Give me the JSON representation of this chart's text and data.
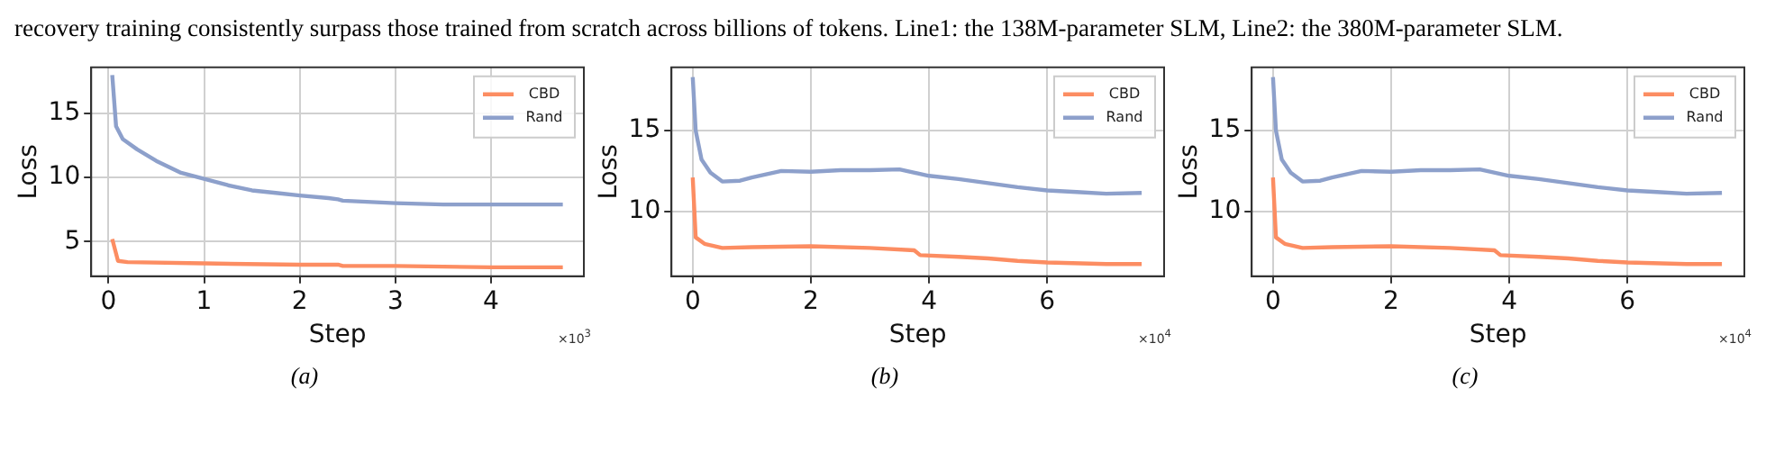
{
  "chart_data": [
    {
      "type": "line",
      "annotations": [
        "recovery training consistently surpass those trained from scratch across billions of tokens. Line1: the 138M-parameter SLM, Line2: the 380M-parameter SLM.",
        "×10$^{3}$",
        "(a)"
      ],
      "xlabel": "Step",
      "ylabel": "Loss",
      "xlim": [
        -0.18,
        4.97
      ],
      "xticks": [
        0,
        1,
        2,
        3,
        4
      ],
      "ylim": [
        2.3,
        18.6
      ],
      "yticks": [
        5,
        10,
        15
      ],
      "grid": true,
      "legend": "top right",
      "marker": "none",
      "line_style": "solid",
      "series": [
        {
          "name": "CBD",
          "color": "#fc8d62",
          "x": [
            0.04,
            0.1,
            0.2,
            1,
            2,
            2.4,
            2.45,
            3,
            4,
            4.75
          ],
          "values": [
            5.2,
            3.5,
            3.4,
            3.3,
            3.2,
            3.2,
            3.1,
            3.1,
            3.0,
            3.0
          ]
        },
        {
          "name": "Rand",
          "color": "#8da0cb",
          "x": [
            0.04,
            0.08,
            0.15,
            0.3,
            0.5,
            0.75,
            1,
            1.25,
            1.5,
            1.75,
            2,
            2.3,
            2.4,
            2.45,
            3,
            3.5,
            4,
            4.75
          ],
          "values": [
            18,
            14,
            13,
            12.2,
            11.3,
            10.4,
            9.9,
            9.4,
            9.0,
            8.8,
            8.6,
            8.4,
            8.3,
            8.2,
            8.0,
            7.9,
            7.9,
            7.9
          ]
        }
      ]
    },
    {
      "type": "line",
      "annotations": [
        "×10$^{4}$",
        "(b)"
      ],
      "xlabel": "Step",
      "ylabel": "Loss",
      "xlim": [
        -0.36,
        7.98
      ],
      "xticks": [
        0,
        2,
        4,
        6
      ],
      "ylim": [
        6,
        18.9
      ],
      "yticks": [
        10,
        15
      ],
      "grid": true,
      "legend": "top right",
      "marker": "none",
      "line_style": "solid",
      "series": [
        {
          "name": "CBD",
          "color": "#fc8d62",
          "x": [
            0,
            0.05,
            0.2,
            0.5,
            1,
            2,
            3,
            3.75,
            3.85,
            4.5,
            5,
            5.5,
            6,
            7,
            7.6
          ],
          "values": [
            12.1,
            8.4,
            8.0,
            7.75,
            7.8,
            7.85,
            7.75,
            7.6,
            7.3,
            7.2,
            7.1,
            6.95,
            6.85,
            6.75,
            6.75
          ]
        },
        {
          "name": "Rand",
          "color": "#8da0cb",
          "x": [
            0,
            0.05,
            0.15,
            0.3,
            0.5,
            0.8,
            1,
            1.5,
            2,
            2.5,
            3,
            3.5,
            4,
            4.5,
            5,
            5.5,
            6,
            6.5,
            7,
            7.6
          ],
          "values": [
            18.3,
            15,
            13.2,
            12.4,
            11.85,
            11.9,
            12.1,
            12.5,
            12.45,
            12.55,
            12.55,
            12.6,
            12.2,
            12.0,
            11.75,
            11.5,
            11.3,
            11.2,
            11.1,
            11.15
          ]
        }
      ]
    },
    {
      "type": "line",
      "annotations": [
        "×10$^{4}$",
        "(c)"
      ],
      "xlabel": "Step",
      "ylabel": "Loss",
      "xlim": [
        -0.36,
        7.98
      ],
      "xticks": [
        0,
        2,
        4,
        6
      ],
      "ylim": [
        6,
        18.9
      ],
      "yticks": [
        10,
        15
      ],
      "grid": true,
      "legend": "top right",
      "marker": "none",
      "line_style": "solid",
      "series": [
        {
          "name": "CBD",
          "color": "#fc8d62",
          "x": [
            0,
            0.05,
            0.2,
            0.5,
            1,
            2,
            3,
            3.75,
            3.85,
            4.5,
            5,
            5.5,
            6,
            7,
            7.6
          ],
          "values": [
            12.1,
            8.4,
            8.0,
            7.75,
            7.8,
            7.85,
            7.75,
            7.6,
            7.3,
            7.2,
            7.1,
            6.95,
            6.85,
            6.75,
            6.75
          ]
        },
        {
          "name": "Rand",
          "color": "#8da0cb",
          "x": [
            0,
            0.05,
            0.15,
            0.3,
            0.5,
            0.8,
            1,
            1.5,
            2,
            2.5,
            3,
            3.5,
            4,
            4.5,
            5,
            5.5,
            6,
            6.5,
            7,
            7.6
          ],
          "values": [
            18.3,
            15,
            13.2,
            12.4,
            11.85,
            11.9,
            12.1,
            12.5,
            12.45,
            12.55,
            12.55,
            12.6,
            12.2,
            12.0,
            11.75,
            11.5,
            11.3,
            11.2,
            11.1,
            11.15
          ]
        }
      ]
    }
  ]
}
